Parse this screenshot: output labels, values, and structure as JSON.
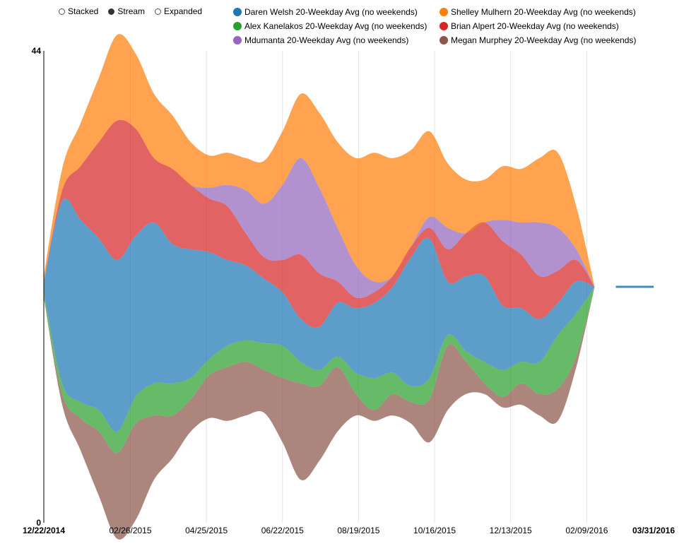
{
  "controls": {
    "options": [
      {
        "label": "Stacked",
        "selected": false
      },
      {
        "label": "Stream",
        "selected": true
      },
      {
        "label": "Expanded",
        "selected": false
      }
    ]
  },
  "chart_data": {
    "type": "area",
    "style": "stream",
    "y_ticks": [
      "44",
      "0"
    ],
    "ylim": [
      0,
      44
    ],
    "x_tick_labels": [
      "12/22/2014",
      "02/26/2015",
      "04/25/2015",
      "06/22/2015",
      "08/19/2015",
      "10/16/2015",
      "12/13/2015",
      "02/09/2016",
      "03/31/2016"
    ],
    "x_tick_labels_bold": [
      "12/22/2014",
      "03/31/2016"
    ],
    "xlim": [
      "12/22/2014",
      "03/31/2016"
    ],
    "grid": "vertical",
    "legend_position": "top",
    "x": [
      "12/22/2014",
      "01/05/2015",
      "01/19/2015",
      "02/02/2015",
      "02/16/2015",
      "03/02/2015",
      "03/16/2015",
      "03/30/2015",
      "04/13/2015",
      "04/27/2015",
      "05/11/2015",
      "05/25/2015",
      "06/08/2015",
      "06/22/2015",
      "07/06/2015",
      "07/20/2015",
      "08/03/2015",
      "08/17/2015",
      "08/31/2015",
      "09/14/2015",
      "09/28/2015",
      "10/12/2015",
      "10/26/2015",
      "11/09/2015",
      "11/23/2015",
      "12/07/2015",
      "12/21/2015",
      "01/04/2016",
      "01/18/2016",
      "02/01/2016",
      "02/15/2016"
    ],
    "series": [
      {
        "name": "Megan Murphey 20-Weekday Avg (no weekends)",
        "color": "#8c564b",
        "values": [
          0,
          1,
          3,
          6,
          8,
          9,
          6,
          4,
          3,
          4,
          5,
          5,
          4,
          6,
          9,
          7,
          6,
          2,
          1,
          2,
          2,
          4,
          6,
          3,
          1,
          1,
          2,
          2,
          3,
          1,
          0
        ]
      },
      {
        "name": "Alex Kanelakos 20-Weekday Avg (no weekends)",
        "color": "#2ca02c",
        "values": [
          0.5,
          1,
          1.5,
          2,
          2,
          2.5,
          3,
          3,
          2,
          1.5,
          2,
          2,
          2.5,
          3,
          2,
          1.5,
          1,
          2,
          3,
          2,
          1.5,
          2,
          1,
          1,
          2,
          2.5,
          2,
          3,
          5,
          4,
          0
        ]
      },
      {
        "name": "Daren Welsh 20-Weekday Avg (no weekends)",
        "color": "#1f77b4",
        "values": [
          1,
          17,
          17,
          16,
          16,
          15,
          15,
          13,
          12,
          10,
          8,
          7,
          6,
          5,
          4,
          4,
          5,
          6,
          7,
          8,
          12,
          13,
          5,
          7,
          8,
          6,
          5,
          4,
          3,
          3,
          0
        ]
      },
      {
        "name": "Brian Alpert 20-Weekday Avg (no weekends)",
        "color": "#d62728",
        "values": [
          0,
          1,
          5,
          9,
          13,
          10,
          6,
          7,
          6,
          5,
          5,
          3,
          2,
          3,
          6,
          5,
          2,
          1,
          1,
          1,
          1,
          1,
          3,
          4,
          5,
          6,
          5,
          4,
          3,
          2,
          0
        ]
      },
      {
        "name": "Mdumanta 20-Weekday Avg (no weekends)",
        "color": "#9467bd",
        "values": [
          0,
          0,
          0,
          0,
          0,
          0,
          0,
          0,
          0,
          1,
          2,
          4,
          5,
          7,
          9,
          8,
          5,
          3,
          1,
          0,
          0,
          1,
          2,
          0,
          0,
          2,
          3,
          5,
          4,
          1,
          0
        ]
      },
      {
        "name": "Shelley Mulhern 20-Weekday Avg (no weekends)",
        "color": "#ff7f0e",
        "values": [
          0.5,
          2,
          4,
          6,
          8,
          7,
          6,
          5,
          4,
          3,
          3,
          3,
          4,
          5,
          6,
          7,
          8,
          10,
          12,
          11,
          9,
          8,
          6,
          5,
          4,
          5,
          5,
          6,
          7,
          4,
          0
        ]
      }
    ]
  }
}
